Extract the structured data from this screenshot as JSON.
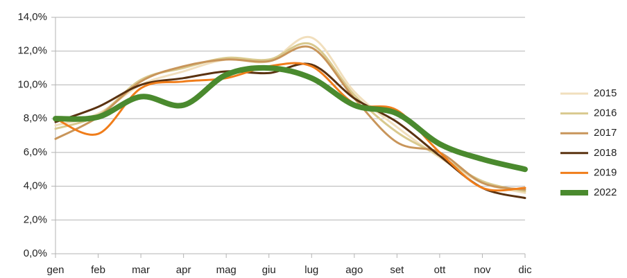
{
  "chart_data": {
    "type": "line",
    "categories": [
      "gen",
      "feb",
      "mar",
      "apr",
      "mag",
      "giu",
      "lug",
      "ago",
      "set",
      "ott",
      "nov",
      "dic"
    ],
    "series": [
      {
        "name": "2015",
        "color": "#f1dfbd",
        "line_width": 3,
        "values": [
          7.6,
          8.3,
          10.0,
          10.8,
          11.5,
          11.4,
          12.8,
          9.6,
          7.5,
          5.7,
          4.2,
          3.6
        ]
      },
      {
        "name": "2016",
        "color": "#d9c98e",
        "line_width": 3,
        "values": [
          7.4,
          8.2,
          10.3,
          11.0,
          11.6,
          11.5,
          12.4,
          9.4,
          7.2,
          5.8,
          4.3,
          3.7
        ]
      },
      {
        "name": "2017",
        "color": "#c8955a",
        "line_width": 3,
        "values": [
          6.8,
          8.1,
          10.2,
          11.1,
          11.5,
          11.4,
          12.2,
          9.2,
          6.6,
          6.0,
          4.2,
          3.8
        ]
      },
      {
        "name": "2018",
        "color": "#5a3210",
        "line_width": 3,
        "values": [
          7.8,
          8.7,
          10.0,
          10.4,
          10.8,
          10.7,
          11.2,
          9.2,
          7.8,
          5.8,
          3.9,
          3.3
        ]
      },
      {
        "name": "2019",
        "color": "#f07d1a",
        "line_width": 3,
        "values": [
          8.0,
          7.1,
          9.8,
          10.2,
          10.4,
          11.1,
          11.1,
          8.9,
          8.5,
          6.0,
          3.9,
          3.9
        ]
      },
      {
        "name": "2022",
        "color": "#4a8a2e",
        "line_width": 8,
        "values": [
          8.0,
          8.1,
          9.3,
          8.8,
          10.6,
          11.0,
          10.4,
          8.8,
          8.3,
          6.5,
          5.6,
          5.0
        ]
      }
    ],
    "ylim": [
      0,
      14
    ],
    "yticks": [
      {
        "value": 0,
        "label": "0,0%"
      },
      {
        "value": 2,
        "label": "2,0%"
      },
      {
        "value": 4,
        "label": "4,0%"
      },
      {
        "value": 6,
        "label": "6,0%"
      },
      {
        "value": 8,
        "label": "8,0%"
      },
      {
        "value": 10,
        "label": "10,0%"
      },
      {
        "value": 12,
        "label": "12,0%"
      },
      {
        "value": 14,
        "label": "14,0%"
      }
    ],
    "grid": true,
    "legend": "right"
  }
}
